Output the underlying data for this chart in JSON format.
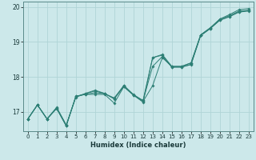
{
  "xlabel": "Humidex (Indice chaleur)",
  "ylabel": "",
  "background_color": "#cce8ea",
  "grid_color": "#b0d4d6",
  "line_color": "#2d7f75",
  "xlim": [
    -0.5,
    23.5
  ],
  "ylim": [
    16.45,
    20.15
  ],
  "yticks": [
    17,
    18,
    19,
    20
  ],
  "xticks": [
    0,
    1,
    2,
    3,
    4,
    5,
    6,
    7,
    8,
    9,
    10,
    11,
    12,
    13,
    14,
    15,
    16,
    17,
    18,
    19,
    20,
    21,
    22,
    23
  ],
  "series": [
    [
      16.8,
      17.2,
      16.8,
      17.1,
      16.6,
      17.45,
      17.5,
      17.5,
      17.5,
      17.25,
      17.72,
      17.48,
      17.3,
      17.75,
      18.55,
      18.3,
      18.3,
      18.4,
      19.2,
      19.4,
      19.65,
      19.75,
      19.88,
      19.9
    ],
    [
      16.8,
      17.2,
      16.8,
      17.1,
      16.6,
      17.45,
      17.5,
      17.55,
      17.52,
      17.38,
      17.72,
      17.48,
      17.28,
      18.55,
      18.62,
      18.28,
      18.28,
      18.35,
      19.18,
      19.38,
      19.62,
      19.72,
      19.85,
      19.88
    ],
    [
      16.8,
      17.2,
      16.8,
      17.12,
      16.62,
      17.42,
      17.52,
      17.6,
      17.52,
      17.4,
      17.75,
      17.5,
      17.32,
      18.3,
      18.58,
      18.28,
      18.28,
      18.36,
      19.18,
      19.38,
      19.62,
      19.72,
      19.86,
      19.9
    ],
    [
      16.8,
      17.2,
      16.8,
      17.13,
      16.63,
      17.43,
      17.53,
      17.62,
      17.53,
      17.37,
      17.76,
      17.48,
      17.33,
      18.55,
      18.64,
      18.3,
      18.3,
      18.4,
      19.2,
      19.4,
      19.65,
      19.78,
      19.92,
      19.95
    ]
  ]
}
